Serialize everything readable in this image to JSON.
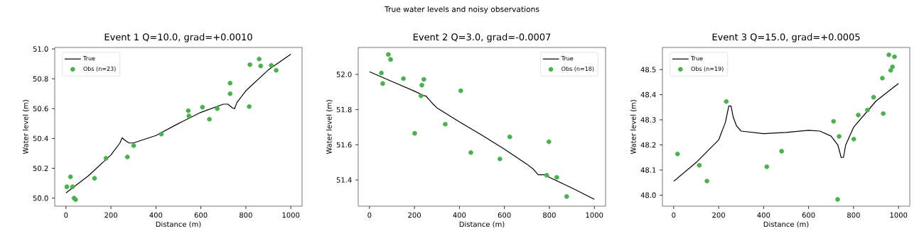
{
  "chart_data": [
    {
      "type": "other",
      "title": "True water levels and noisy observations"
    },
    {
      "type": "scatter",
      "title": "Event 1  Q=10.0, grad=+0.0010",
      "xlabel": "Distance (m)",
      "ylabel": "Water level (m)",
      "legend": "top left",
      "xlim": [
        -50,
        1050
      ],
      "ylim": [
        49.946,
        51.01
      ],
      "xticks": [
        0,
        200,
        400,
        600,
        800,
        1000
      ],
      "yticks": [
        {
          "value": 50.0,
          "label": "50.0"
        },
        50.2,
        50.4,
        50.6,
        50.8,
        {
          "value": 51.0,
          "label": "51.0"
        }
      ],
      "series": [
        {
          "name": "True",
          "type": "line",
          "color": "#000000",
          "marker": "none",
          "line_style": "solid",
          "x": [
            0,
            100,
            200,
            240,
            250,
            260,
            280,
            300,
            400,
            500,
            600,
            700,
            720,
            740,
            750,
            760,
            800,
            900,
            1000
          ],
          "values": [
            50.035,
            50.15,
            50.29,
            50.37,
            50.405,
            50.39,
            50.37,
            50.37,
            50.42,
            50.5,
            50.575,
            50.63,
            50.63,
            50.605,
            50.6,
            50.64,
            50.72,
            50.86,
            50.965
          ]
        },
        {
          "name": "Obs (n=23)",
          "type": "scatter",
          "color": "#4caf50",
          "marker": "circle",
          "x": [
            4,
            20,
            29,
            36,
            43,
            127,
            178,
            273,
            301,
            424,
            544,
            547,
            607,
            638,
            673,
            730,
            730,
            815,
            818,
            859,
            866,
            913,
            935
          ],
          "values": [
            50.076,
            50.143,
            50.076,
            50.0,
            49.99,
            50.133,
            50.267,
            50.276,
            50.352,
            50.429,
            50.586,
            50.551,
            50.61,
            50.529,
            50.6,
            50.771,
            50.7,
            50.614,
            50.895,
            50.933,
            50.886,
            50.89,
            50.857
          ]
        }
      ]
    },
    {
      "type": "scatter",
      "title": "Event 2  Q=3.0, grad=-0.0007",
      "xlabel": "Distance (m)",
      "ylabel": "Water level (m)",
      "legend": "top right",
      "xlim": [
        -50,
        1050
      ],
      "ylim": [
        51.251,
        52.153
      ],
      "xticks": [
        0,
        200,
        400,
        600,
        800,
        1000
      ],
      "yticks": [
        51.4,
        51.6,
        51.8,
        {
          "value": 52.0,
          "label": "52.0"
        }
      ],
      "series": [
        {
          "name": "True",
          "type": "line",
          "color": "#000000",
          "marker": "none",
          "line_style": "solid",
          "x": [
            0,
            100,
            200,
            240,
            250,
            260,
            280,
            300,
            400,
            500,
            600,
            700,
            730,
            750,
            760,
            780,
            800,
            900,
            1000
          ],
          "values": [
            52.015,
            51.96,
            51.905,
            51.88,
            51.878,
            51.865,
            51.835,
            51.81,
            51.73,
            51.655,
            51.575,
            51.49,
            51.46,
            51.43,
            51.43,
            51.43,
            51.415,
            51.355,
            51.29
          ]
        },
        {
          "name": "Obs (n=18)",
          "type": "scatter",
          "color": "#4caf50",
          "marker": "circle",
          "x": [
            53,
            59,
            84,
            94,
            151,
            201,
            229,
            233,
            242,
            337,
            406,
            451,
            580,
            624,
            788,
            798,
            833,
            877
          ],
          "values": [
            52.008,
            51.948,
            52.113,
            52.085,
            51.976,
            51.665,
            51.878,
            51.939,
            51.972,
            51.717,
            51.907,
            51.556,
            51.52,
            51.645,
            51.427,
            51.617,
            51.415,
            51.306
          ]
        }
      ]
    },
    {
      "type": "scatter",
      "title": "Event 3  Q=15.0, grad=+0.0005",
      "xlabel": "Distance (m)",
      "ylabel": "Water level (m)",
      "legend": "top left",
      "xlim": [
        -50,
        1050
      ],
      "ylim": [
        47.956,
        48.588
      ],
      "xticks": [
        0,
        200,
        400,
        600,
        800,
        1000
      ],
      "yticks": [
        {
          "value": 48.0,
          "label": "48.0"
        },
        48.1,
        48.2,
        48.3,
        48.4,
        48.5
      ],
      "series": [
        {
          "name": "True",
          "type": "line",
          "color": "#000000",
          "marker": "none",
          "line_style": "solid",
          "x": [
            0,
            100,
            200,
            230,
            245,
            255,
            265,
            280,
            300,
            400,
            500,
            600,
            650,
            700,
            730,
            745,
            755,
            765,
            800,
            900,
            1000
          ],
          "values": [
            48.055,
            48.13,
            48.22,
            48.29,
            48.355,
            48.355,
            48.31,
            48.275,
            48.255,
            48.245,
            48.25,
            48.258,
            48.255,
            48.235,
            48.2,
            48.15,
            48.15,
            48.2,
            48.27,
            48.375,
            48.445
          ]
        },
        {
          "name": "Obs (n=19)",
          "type": "scatter",
          "color": "#4caf50",
          "marker": "circle",
          "x": [
            17,
            114,
            148,
            234,
            414,
            480,
            711,
            729,
            736,
            801,
            821,
            862,
            889,
            928,
            932,
            957,
            965,
            973,
            982
          ],
          "values": [
            48.164,
            48.119,
            48.056,
            48.373,
            48.113,
            48.175,
            48.294,
            47.983,
            48.234,
            48.223,
            48.319,
            48.339,
            48.39,
            48.466,
            48.325,
            48.559,
            48.497,
            48.511,
            48.551
          ]
        }
      ]
    }
  ]
}
